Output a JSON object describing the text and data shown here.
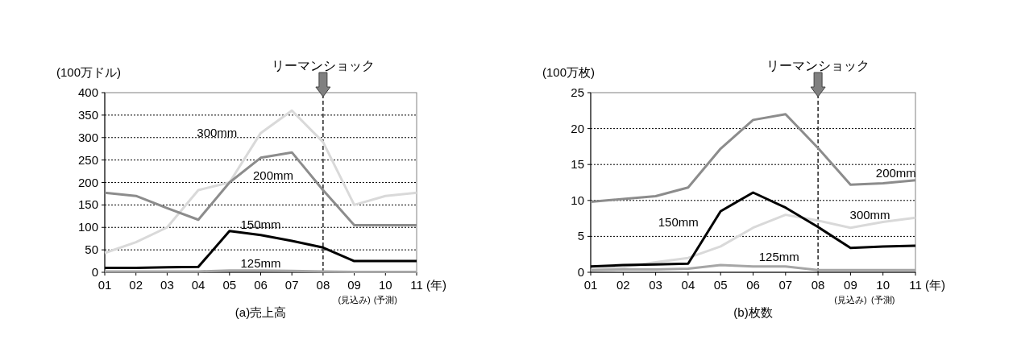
{
  "chart_data": [
    {
      "type": "line",
      "title": "(a)売上高",
      "ylabel": "(100万ドル)",
      "xlabel": "(年)",
      "categories": [
        "01",
        "02",
        "03",
        "04",
        "05",
        "06",
        "07",
        "08",
        "09",
        "10",
        "11"
      ],
      "series": [
        {
          "name": "300mm",
          "color": "#d9d9d9",
          "values": [
            43,
            67,
            100,
            183,
            200,
            310,
            360,
            290,
            150,
            170,
            177
          ]
        },
        {
          "name": "200mm",
          "color": "#8c8c8c",
          "values": [
            177,
            170,
            143,
            117,
            200,
            255,
            267,
            183,
            105,
            105,
            105
          ]
        },
        {
          "name": "150mm",
          "color": "#000000",
          "values": [
            10,
            10,
            11,
            12,
            92,
            83,
            70,
            55,
            25,
            25,
            25
          ]
        },
        {
          "name": "125mm",
          "color": "#a6a6a6",
          "values": [
            2,
            2,
            2,
            2,
            4,
            4,
            3,
            2,
            1,
            1,
            1
          ]
        }
      ],
      "ylim": [
        0,
        400
      ],
      "yticks": [
        0,
        50,
        100,
        150,
        200,
        250,
        300,
        350,
        400
      ],
      "grid": "y",
      "marker": "none",
      "line_style": "solid",
      "ref_lines": [
        {
          "axis": "x",
          "value": "08",
          "label": "リーマンショック",
          "color": "#000000",
          "line_style": "dashed"
        }
      ],
      "annotations": [
        "(見込み)",
        "(予測)"
      ]
    },
    {
      "type": "line",
      "title": "(b)枚数",
      "ylabel": "(100万枚)",
      "xlabel": "(年)",
      "categories": [
        "01",
        "02",
        "03",
        "04",
        "05",
        "06",
        "07",
        "08",
        "09",
        "10",
        "11"
      ],
      "series": [
        {
          "name": "300mm",
          "color": "#d9d9d9",
          "values": [
            0.3,
            0.7,
            1.4,
            2.0,
            3.6,
            6.2,
            8.0,
            7.2,
            6.2,
            7.0,
            7.6
          ]
        },
        {
          "name": "200mm",
          "color": "#8c8c8c",
          "values": [
            9.8,
            10.2,
            10.6,
            11.8,
            17.2,
            21.2,
            22.0,
            17.3,
            12.2,
            12.4,
            12.8
          ]
        },
        {
          "name": "150mm",
          "color": "#000000",
          "values": [
            0.8,
            1.0,
            1.1,
            1.2,
            8.5,
            11.1,
            9.0,
            6.3,
            3.4,
            3.6,
            3.7
          ]
        },
        {
          "name": "125mm",
          "color": "#a6a6a6",
          "values": [
            0.3,
            0.4,
            0.4,
            0.5,
            1.0,
            0.8,
            0.8,
            0.3,
            0.3,
            0.3,
            0.3
          ]
        }
      ],
      "ylim": [
        0,
        25
      ],
      "yticks": [
        0,
        5,
        10,
        15,
        20,
        25
      ],
      "grid": "y",
      "marker": "none",
      "line_style": "solid",
      "ref_lines": [
        {
          "axis": "x",
          "value": "08",
          "label": "リーマンショック",
          "color": "#000000",
          "line_style": "dashed"
        }
      ],
      "annotations": [
        "(見込み)",
        "(予測)"
      ]
    }
  ]
}
